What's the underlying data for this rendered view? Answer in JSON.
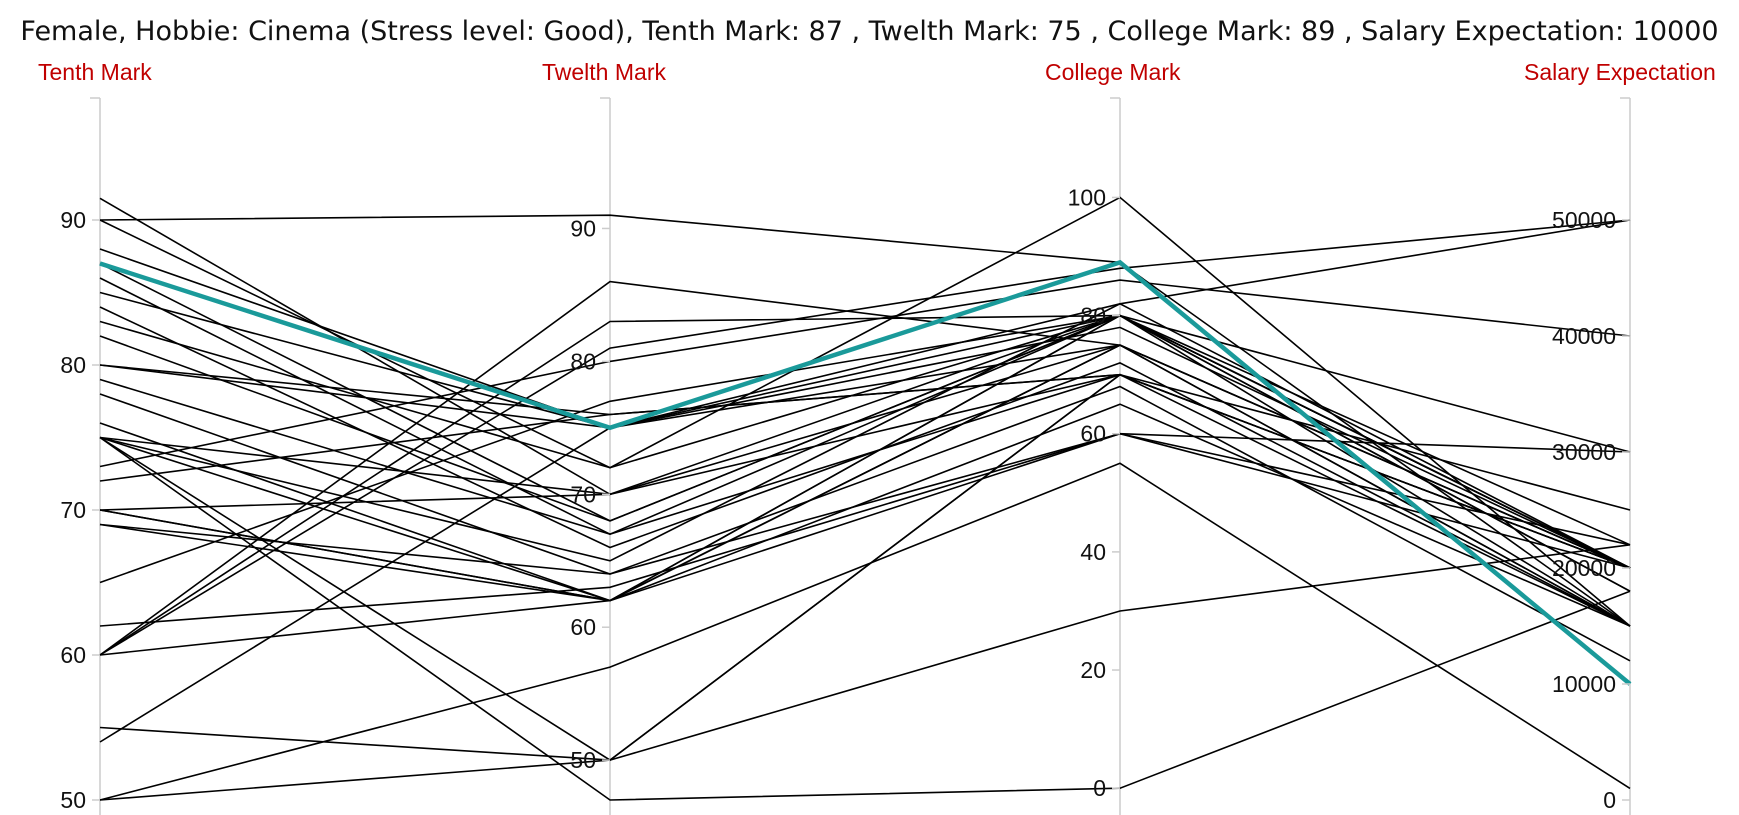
{
  "chart_data": {
    "type": "parallel_coordinates",
    "title": "Female, Hobbie: Cinema (Stress level: Good), Tenth Mark: 87 , Twelth Mark: 75 , College Mark: 89 , Salary Expectation: 10000",
    "colors": {
      "highlight": "#1a9a9a",
      "line": "#000000",
      "axis_label": "#c00000",
      "axis": "#cccccc"
    },
    "axes": [
      {
        "name": "Tenth Mark",
        "range": [
          50,
          94
        ],
        "ticks": [
          50,
          60,
          70,
          80,
          90
        ]
      },
      {
        "name": "Twelth Mark",
        "range": [
          47,
          95
        ],
        "ticks": [
          50,
          60,
          70,
          80,
          90
        ]
      },
      {
        "name": "College Mark",
        "range": [
          -2,
          106
        ],
        "ticks": [
          0,
          20,
          40,
          60,
          80,
          100
        ]
      },
      {
        "name": "Salary Expectation",
        "range": [
          0,
          55000
        ],
        "ticks": [
          0,
          10000,
          20000,
          30000,
          40000,
          50000
        ]
      }
    ],
    "highlighted": [
      87,
      75,
      89,
      10000
    ],
    "rows": [
      [
        90,
        91,
        89,
        15000
      ],
      [
        91.5,
        70,
        75,
        15000
      ],
      [
        90,
        72,
        100,
        15000
      ],
      [
        88,
        75,
        80,
        20000
      ],
      [
        87,
        68,
        80,
        18000
      ],
      [
        86,
        67,
        70,
        20000
      ],
      [
        85,
        75,
        78,
        20000
      ],
      [
        84,
        66,
        72,
        15000
      ],
      [
        83,
        72,
        80,
        20000
      ],
      [
        82,
        68,
        80,
        22000
      ],
      [
        80,
        75,
        75,
        20000
      ],
      [
        80,
        76,
        70,
        15000
      ],
      [
        79,
        67,
        80,
        18000
      ],
      [
        78,
        64,
        68,
        12000
      ],
      [
        76,
        62,
        80,
        20000
      ],
      [
        75,
        70,
        70,
        20000
      ],
      [
        75,
        62,
        60,
        22000
      ],
      [
        75,
        65,
        82,
        20000
      ],
      [
        75,
        50,
        70,
        25000
      ],
      [
        73,
        80,
        86,
        40000
      ],
      [
        72,
        76,
        70,
        20000
      ],
      [
        70,
        62,
        75,
        15000
      ],
      [
        70,
        70,
        80,
        20000
      ],
      [
        70,
        62,
        65,
        15000
      ],
      [
        69,
        64,
        60,
        20000
      ],
      [
        69,
        62,
        75,
        20000
      ],
      [
        65,
        77,
        80,
        30000
      ],
      [
        62,
        63,
        60,
        30000
      ],
      [
        60,
        62,
        80,
        15000
      ],
      [
        60,
        83,
        80,
        20000
      ],
      [
        60,
        81,
        88,
        50000
      ],
      [
        60,
        86,
        75,
        20000
      ],
      [
        54,
        75,
        82,
        50000
      ],
      [
        55,
        50,
        70,
        20000
      ],
      [
        50,
        50,
        30,
        22000
      ],
      [
        50,
        57,
        55,
        1000
      ],
      [
        75,
        47,
        0,
        18000
      ]
    ]
  }
}
